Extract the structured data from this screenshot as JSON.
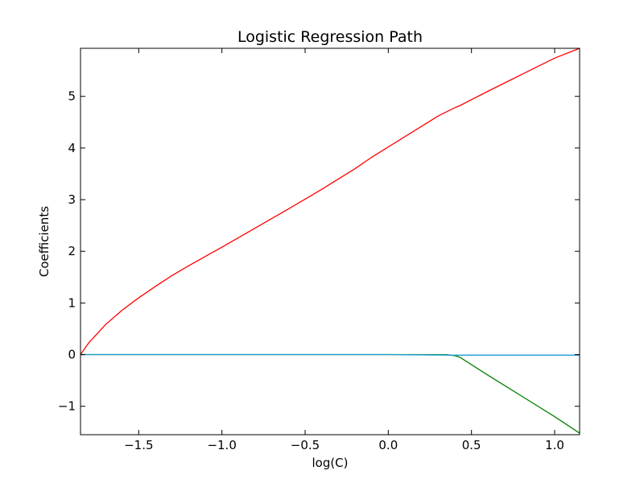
{
  "chart_data": {
    "type": "line",
    "title": "Logistic Regression Path",
    "xlabel": "log(C)",
    "ylabel": "Coefficients",
    "xlim": [
      -1.85,
      1.15
    ],
    "ylim": [
      -1.55,
      5.93
    ],
    "xticks": [
      -1.5,
      -1.0,
      -0.5,
      0.0,
      0.5,
      1.0
    ],
    "xtick_labels": [
      "−1.5",
      "−1.0",
      "−0.5",
      "0.0",
      "0.5",
      "1.0"
    ],
    "yticks": [
      -1,
      0,
      1,
      2,
      3,
      4,
      5
    ],
    "ytick_labels": [
      "−1",
      "0",
      "1",
      "2",
      "3",
      "4",
      "5"
    ],
    "grid": false,
    "series": [
      {
        "color": "#ff0000",
        "x": [
          -1.85,
          -1.8,
          -1.7,
          -1.6,
          -1.5,
          -1.4,
          -1.3,
          -1.2,
          -1.0,
          -0.8,
          -0.6,
          -0.4,
          -0.2,
          -0.1,
          0.0,
          0.05,
          0.1,
          0.2,
          0.3,
          0.4,
          0.43,
          0.6,
          0.8,
          1.0,
          1.15
        ],
        "y": [
          0.0,
          0.23,
          0.58,
          0.86,
          1.1,
          1.32,
          1.53,
          1.72,
          2.08,
          2.45,
          2.82,
          3.2,
          3.6,
          3.82,
          4.02,
          4.12,
          4.22,
          4.42,
          4.62,
          4.78,
          4.82,
          5.1,
          5.42,
          5.74,
          5.93
        ]
      },
      {
        "color": "#008000",
        "x": [
          -1.85,
          0.35,
          0.4,
          0.43,
          0.6,
          0.8,
          1.0,
          1.15
        ],
        "y": [
          0.0,
          0.0,
          -0.02,
          -0.05,
          -0.4,
          -0.8,
          -1.2,
          -1.52
        ]
      },
      {
        "color": "#1b9bd1",
        "x": [
          -1.85,
          0.0,
          0.4,
          1.15
        ],
        "y": [
          0.0,
          0.0,
          -0.01,
          -0.01
        ]
      }
    ]
  }
}
